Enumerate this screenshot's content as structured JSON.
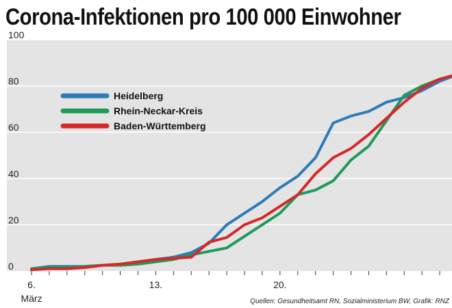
{
  "chart_data": {
    "type": "line",
    "title": "Corona-Infektionen pro 100 000 Einwohner",
    "x": [
      "6.",
      "7.",
      "8.",
      "9.",
      "10.",
      "11.",
      "12.",
      "13.",
      "14.",
      "15.",
      "16.",
      "17.",
      "18.",
      "19.",
      "20.",
      "21.",
      "22.",
      "23.",
      "24.",
      "25.",
      "26.",
      "27.",
      "28.",
      "29.",
      "30."
    ],
    "x_ticks": [
      {
        "index": 0,
        "label": "6."
      },
      {
        "index": 7,
        "label": "13."
      },
      {
        "index": 14,
        "label": "20."
      }
    ],
    "x_sublabel": "März",
    "y_ticks": [
      0,
      20,
      40,
      60,
      80,
      100
    ],
    "ylim": [
      0,
      100
    ],
    "grid": "horizontal",
    "legend_position": "top-left",
    "series": [
      {
        "name": "Heidelberg",
        "color": "#2e7bb8",
        "values": [
          1,
          2,
          2,
          2,
          2.5,
          3,
          4,
          5,
          6,
          8,
          12,
          20,
          25,
          30,
          36,
          41,
          49,
          64,
          67,
          69,
          73,
          75,
          78,
          82,
          85
        ]
      },
      {
        "name": "Rhein-Neckar-Kreis",
        "color": "#1e9a5a",
        "values": [
          1,
          1.5,
          1.5,
          2,
          2.5,
          2.5,
          3,
          4,
          5,
          7,
          8.5,
          10,
          15,
          20,
          25,
          33,
          35,
          39,
          48,
          54,
          65,
          76,
          80,
          83,
          85
        ]
      },
      {
        "name": "Baden-Württemberg",
        "color": "#d62828",
        "values": [
          0.5,
          1,
          1,
          1.5,
          2.5,
          3,
          4,
          5,
          5.5,
          6,
          12.5,
          14.5,
          20,
          23,
          28,
          33,
          42,
          49,
          53,
          59,
          66,
          73,
          79,
          83,
          85
        ]
      }
    ],
    "source": "Quellen: Gesundheitsamt RN, Sozialministerium BW, Grafik: RNZ"
  }
}
